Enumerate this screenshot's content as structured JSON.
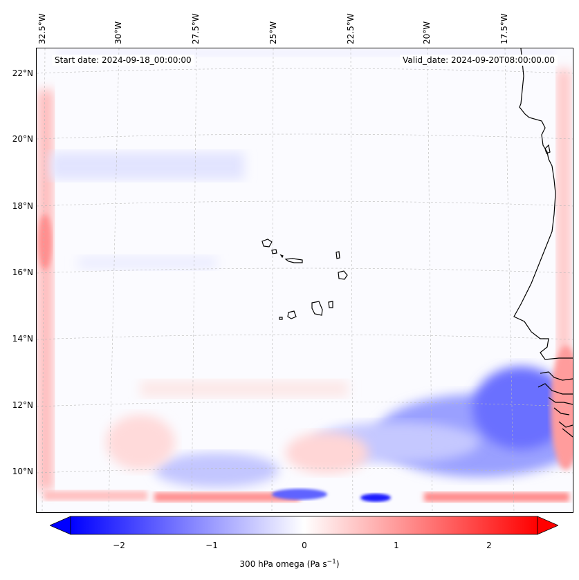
{
  "map": {
    "lon_labels": [
      "32.5°W",
      "30°W",
      "27.5°W",
      "25°W",
      "22.5°W",
      "20°W",
      "17.5°W"
    ],
    "lat_labels": [
      "22°N",
      "20°N",
      "18°N",
      "16°N",
      "14°N",
      "12°N",
      "10°N"
    ],
    "start_date": "Start date: 2024-09-18_00:00:00",
    "valid_date": "Valid_date: 2024-09-20T08:00:00.00",
    "gridlines": true,
    "coastline_color": "#000000"
  },
  "colorbar": {
    "ticks": [
      "−2",
      "−1",
      "0",
      "1",
      "2"
    ],
    "label": "300 hPa omega (Pa s",
    "label_sup": "−1",
    "label_end": ")",
    "range": [
      -2.7,
      2.7
    ],
    "colormap": "bwr",
    "low_color": "#0000ff",
    "mid_color": "#ffffff",
    "high_color": "#ff0000"
  }
}
